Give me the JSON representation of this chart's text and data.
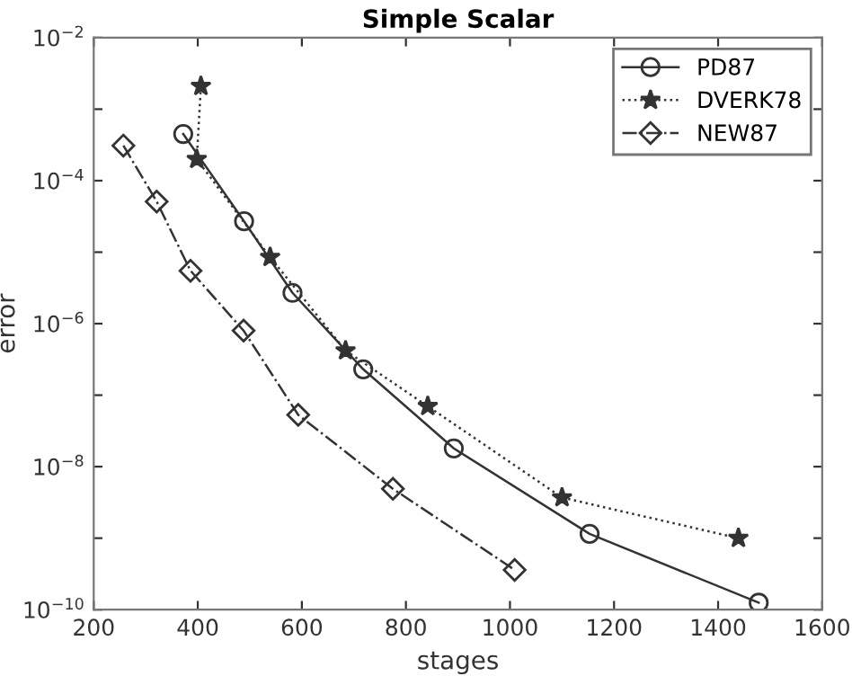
{
  "chart_data": {
    "type": "line",
    "title": "Simple Scalar",
    "xlabel": "stages",
    "ylabel": "error",
    "log": "y",
    "grid": false,
    "legend": "top right",
    "xlim": [
      200,
      1600
    ],
    "xticks": [
      200,
      400,
      600,
      800,
      1000,
      1200,
      1400,
      1600
    ],
    "ylim": [
      1e-10,
      0.01
    ],
    "yticks": [
      {
        "value": 1e-10,
        "label": "10$^{−10}$"
      },
      {
        "value": 1e-09,
        "label": null
      },
      {
        "value": 1e-08,
        "label": "10$^{−8}$"
      },
      {
        "value": 1e-07,
        "label": null
      },
      {
        "value": 1e-06,
        "label": "10$^{−6}$"
      },
      {
        "value": 1e-05,
        "label": null
      },
      {
        "value": 0.0001,
        "label": "10$^{−4}$"
      },
      {
        "value": 0.001,
        "label": null
      },
      {
        "value": 0.01,
        "label": "10$^{−2}$"
      }
    ],
    "series": [
      {
        "name": "PD87",
        "color": "#333333",
        "marker": "circle",
        "line_style": "solid",
        "x": [
          372,
          489,
          582,
          718,
          892,
          1153,
          1478
        ],
        "values": [
          0.00045,
          2.7e-05,
          2.7e-06,
          2.3e-07,
          1.8e-08,
          1.15e-09,
          1.25e-10
        ]
      },
      {
        "name": "DVERK78",
        "color": "#333333",
        "marker": "star",
        "line_style": "dotted",
        "x": [
          406,
          398,
          539,
          684,
          842,
          1100,
          1439
        ],
        "values": [
          0.0021,
          0.0002,
          8.5e-06,
          4.2e-07,
          7e-08,
          3.7e-09,
          1e-09
        ]
      },
      {
        "name": "NEW87",
        "color": "#333333",
        "marker": "diamond",
        "line_style": "dashdot",
        "x": [
          257,
          321,
          386,
          488,
          593,
          775,
          1009
        ],
        "values": [
          0.00031,
          5.1e-05,
          5.5e-06,
          8e-07,
          5.3e-08,
          4.9e-09,
          3.6e-10
        ]
      }
    ]
  }
}
